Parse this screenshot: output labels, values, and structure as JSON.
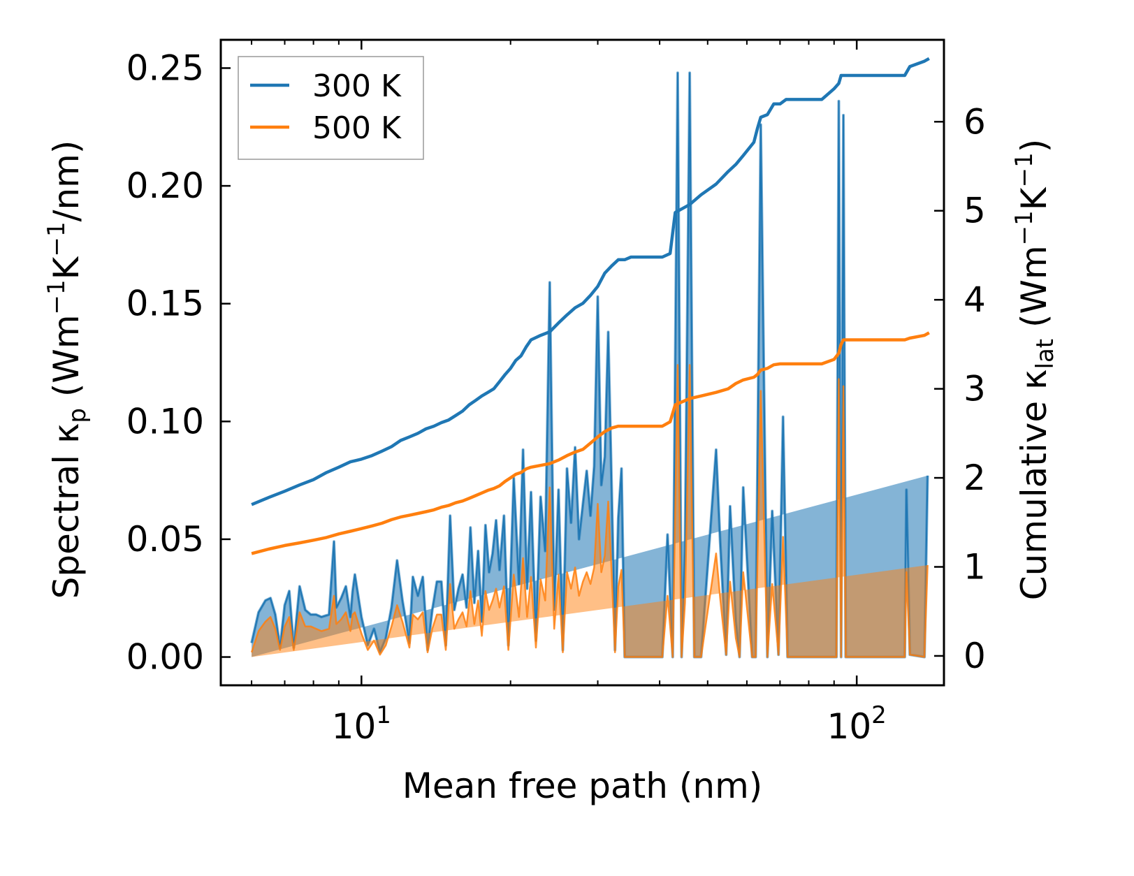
{
  "chart_data": {
    "type": "line",
    "xscale": "log",
    "xlabel": "Mean free path (nm)",
    "ylabel_left": {
      "prefix": "Spectral κ",
      "sub": "p",
      "unit_open": " (Wm",
      "sup1": "−1",
      "mid": "K",
      "sup2": "−1",
      "unit_close": "/nm)"
    },
    "ylabel_right": {
      "prefix": "Cumulative κ",
      "sub": "lat",
      "unit_open": " (Wm",
      "sup1": "−1",
      "mid": "K",
      "sup2": "−1",
      "unit_close": ")"
    },
    "xlim": [
      5.2,
      150
    ],
    "ylim_left": [
      -0.012,
      0.262
    ],
    "ylim_right": [
      -0.33,
      6.92
    ],
    "x_major_ticks": [
      {
        "value": 10,
        "base": "10",
        "exp": "1"
      },
      {
        "value": 100,
        "base": "10",
        "exp": "2"
      }
    ],
    "y_left_ticks": [
      "0.00",
      "0.05",
      "0.10",
      "0.15",
      "0.20",
      "0.25"
    ],
    "y_right_ticks": [
      "0",
      "1",
      "2",
      "3",
      "4",
      "5",
      "6"
    ],
    "legend": [
      {
        "label": "300 K",
        "color": "#1f77b4"
      },
      {
        "label": "500 K",
        "color": "#ff7f0e"
      }
    ],
    "colors": {
      "s300": "#1f77b4",
      "s500": "#ff7f0e",
      "fill300": "#1f77b4",
      "fill500": "#ff7f0e"
    },
    "spectral": {
      "x": [
        6.0,
        6.2,
        6.4,
        6.55,
        6.7,
        6.85,
        7.0,
        7.15,
        7.3,
        7.5,
        7.7,
        7.9,
        8.1,
        8.3,
        8.6,
        8.8,
        8.9,
        9.1,
        9.3,
        9.5,
        9.6,
        9.7,
        10.0,
        10.3,
        10.6,
        10.9,
        11.2,
        11.5,
        11.8,
        12.1,
        12.5,
        12.7,
        13.0,
        13.3,
        13.6,
        13.9,
        14.2,
        14.5,
        14.8,
        15.1,
        15.4,
        15.7,
        16.0,
        16.3,
        16.6,
        16.9,
        17.2,
        17.5,
        17.8,
        18.1,
        18.4,
        18.7,
        19.0,
        19.4,
        19.8,
        20.3,
        20.8,
        21.2,
        21.6,
        22.0,
        22.5,
        23.0,
        23.5,
        24.0,
        24.5,
        25.0,
        25.5,
        26.0,
        26.5,
        27.0,
        27.5,
        28.0,
        28.5,
        29.0,
        29.5,
        30.0,
        30.5,
        31.0,
        31.5,
        32.0,
        32.5,
        33.0,
        33.5,
        34.0,
        34.5,
        35.0,
        40.5,
        41.5,
        42.5,
        43.5,
        44.3,
        45.0,
        46.0,
        47.0,
        48.5,
        52.0,
        53.0,
        54.5,
        55.5,
        57.0,
        58.0,
        59.0,
        61.5,
        62.5,
        64.0,
        66.0,
        67.5,
        69.5,
        71.0,
        72.5,
        75.0,
        90.0,
        91.0,
        92.0,
        93.0,
        94.0,
        95.0,
        96.0,
        125.0,
        126.0,
        128.0,
        137.0,
        139.0,
        141.0
      ],
      "y300": [
        0.006,
        0.019,
        0.024,
        0.025,
        0.018,
        0.004,
        0.022,
        0.028,
        0.004,
        0.03,
        0.02,
        0.018,
        0.018,
        0.017,
        0.018,
        0.049,
        0.021,
        0.025,
        0.03,
        0.017,
        0.028,
        0.035,
        0.017,
        0.005,
        0.012,
        0.002,
        0.008,
        0.021,
        0.041,
        0.024,
        0.006,
        0.034,
        0.026,
        0.034,
        0.003,
        0.02,
        0.032,
        0.032,
        0.005,
        0.06,
        0.02,
        0.029,
        0.035,
        0.021,
        0.055,
        0.023,
        0.045,
        0.015,
        0.056,
        0.036,
        0.044,
        0.058,
        0.037,
        0.06,
        0.005,
        0.076,
        0.031,
        0.088,
        0.029,
        0.07,
        0.007,
        0.068,
        0.045,
        0.159,
        0.02,
        0.071,
        0.003,
        0.08,
        0.057,
        0.089,
        0.05,
        0.065,
        0.079,
        0.06,
        0.081,
        0.153,
        0.073,
        0.085,
        0.138,
        0.072,
        0.003,
        0.059,
        0.08,
        0.0,
        0.0,
        0.0,
        0.0,
        0.052,
        0.0,
        0.248,
        0.0,
        0.046,
        0.248,
        0.0,
        0.0,
        0.088,
        0.049,
        0.001,
        0.064,
        0.015,
        0.0,
        0.072,
        0.0,
        0.0,
        0.226,
        0.0,
        0.062,
        0.001,
        0.102,
        0.0,
        0.0,
        0.0,
        0.0,
        0.236,
        0.0,
        0.23,
        0.0,
        0.0,
        0.0,
        0.071,
        0.001,
        0.0,
        0.077
      ],
      "y500": [
        0.002,
        0.011,
        0.015,
        0.017,
        0.012,
        0.003,
        0.013,
        0.017,
        0.003,
        0.019,
        0.013,
        0.013,
        0.012,
        0.011,
        0.012,
        0.026,
        0.014,
        0.016,
        0.019,
        0.011,
        0.018,
        0.019,
        0.01,
        0.003,
        0.007,
        0.001,
        0.005,
        0.013,
        0.022,
        0.015,
        0.004,
        0.018,
        0.016,
        0.019,
        0.002,
        0.012,
        0.018,
        0.018,
        0.003,
        0.031,
        0.012,
        0.016,
        0.019,
        0.013,
        0.028,
        0.014,
        0.024,
        0.009,
        0.028,
        0.02,
        0.024,
        0.029,
        0.021,
        0.03,
        0.003,
        0.035,
        0.017,
        0.042,
        0.017,
        0.034,
        0.004,
        0.033,
        0.024,
        0.072,
        0.012,
        0.035,
        0.002,
        0.036,
        0.029,
        0.038,
        0.026,
        0.032,
        0.036,
        0.031,
        0.038,
        0.065,
        0.036,
        0.043,
        0.066,
        0.036,
        0.002,
        0.03,
        0.037,
        0.0,
        0.0,
        0.0,
        0.0,
        0.026,
        0.0,
        0.124,
        0.0,
        0.023,
        0.124,
        0.0,
        0.0,
        0.044,
        0.025,
        0.001,
        0.032,
        0.008,
        0.0,
        0.036,
        0.0,
        0.0,
        0.113,
        0.0,
        0.031,
        0.001,
        0.051,
        0.0,
        0.0,
        0.0,
        0.0,
        0.118,
        0.0,
        0.115,
        0.0,
        0.0,
        0.0,
        0.036,
        0.001,
        0.0,
        0.039
      ]
    },
    "cumulative": {
      "x300": [
        6.0,
        6.5,
        7.0,
        7.5,
        8.0,
        8.5,
        9.0,
        9.5,
        10.0,
        10.5,
        11.0,
        11.5,
        12.0,
        12.5,
        13.0,
        13.5,
        14.0,
        14.5,
        15.0,
        15.5,
        16.0,
        16.5,
        17.0,
        17.5,
        18.0,
        18.5,
        19.0,
        19.5,
        20.0,
        20.5,
        21.0,
        21.5,
        22.0,
        23.0,
        24.0,
        25.0,
        26.0,
        27.0,
        28.0,
        29.0,
        30.0,
        31.0,
        32.0,
        33.0,
        34.0,
        35.0,
        40.5,
        42.0,
        43.0,
        46.0,
        48.5,
        52.0,
        55.0,
        57.0,
        59.0,
        62.0,
        63.0,
        64.0,
        66.0,
        67.0,
        68.0,
        70.0,
        72.0,
        75.0,
        85.0,
        90.0,
        92.0,
        93.0,
        94.0,
        95.0,
        96.0,
        125.0,
        128.0,
        137.0,
        140.0
      ],
      "y300": [
        1.7,
        1.78,
        1.85,
        1.92,
        1.98,
        2.06,
        2.12,
        2.18,
        2.21,
        2.25,
        2.3,
        2.35,
        2.42,
        2.46,
        2.5,
        2.55,
        2.58,
        2.62,
        2.65,
        2.7,
        2.75,
        2.82,
        2.87,
        2.92,
        2.96,
        3.0,
        3.08,
        3.16,
        3.23,
        3.32,
        3.37,
        3.47,
        3.55,
        3.6,
        3.64,
        3.74,
        3.83,
        3.91,
        3.96,
        4.05,
        4.15,
        4.3,
        4.38,
        4.45,
        4.45,
        4.48,
        4.48,
        4.52,
        4.98,
        5.07,
        5.18,
        5.3,
        5.44,
        5.52,
        5.62,
        5.77,
        5.92,
        6.05,
        6.08,
        6.14,
        6.2,
        6.2,
        6.25,
        6.25,
        6.25,
        6.37,
        6.43,
        6.52,
        6.52,
        6.52,
        6.52,
        6.52,
        6.62,
        6.68,
        6.71
      ],
      "x500": [
        6.0,
        6.5,
        7.0,
        7.5,
        8.0,
        8.5,
        9.0,
        9.5,
        10.0,
        10.5,
        11.0,
        11.5,
        12.0,
        12.5,
        13.0,
        13.5,
        14.0,
        14.5,
        15.0,
        15.5,
        16.0,
        16.5,
        17.0,
        17.5,
        18.0,
        18.5,
        19.0,
        19.5,
        20.0,
        20.5,
        21.0,
        21.5,
        22.0,
        23.0,
        24.0,
        25.0,
        26.0,
        27.0,
        28.0,
        29.0,
        30.0,
        31.0,
        32.0,
        33.0,
        34.0,
        35.0,
        40.5,
        42.0,
        43.0,
        46.0,
        48.5,
        52.0,
        55.0,
        57.0,
        59.0,
        62.0,
        63.0,
        64.0,
        66.0,
        67.0,
        68.0,
        70.0,
        72.0,
        75.0,
        85.0,
        90.0,
        92.0,
        93.0,
        94.0,
        95.0,
        96.0,
        125.0,
        128.0,
        137.0,
        140.0
      ],
      "y500": [
        1.15,
        1.2,
        1.24,
        1.27,
        1.3,
        1.33,
        1.37,
        1.4,
        1.43,
        1.46,
        1.49,
        1.53,
        1.56,
        1.58,
        1.6,
        1.62,
        1.64,
        1.67,
        1.69,
        1.72,
        1.74,
        1.77,
        1.8,
        1.83,
        1.86,
        1.88,
        1.91,
        1.96,
        2.0,
        2.04,
        2.06,
        2.1,
        2.12,
        2.14,
        2.16,
        2.2,
        2.25,
        2.29,
        2.32,
        2.39,
        2.46,
        2.52,
        2.56,
        2.58,
        2.58,
        2.58,
        2.58,
        2.63,
        2.82,
        2.89,
        2.92,
        2.96,
        3.0,
        3.06,
        3.1,
        3.13,
        3.16,
        3.21,
        3.23,
        3.25,
        3.27,
        3.28,
        3.28,
        3.28,
        3.28,
        3.33,
        3.4,
        3.5,
        3.55,
        3.55,
        3.55,
        3.55,
        3.57,
        3.6,
        3.63
      ]
    }
  }
}
